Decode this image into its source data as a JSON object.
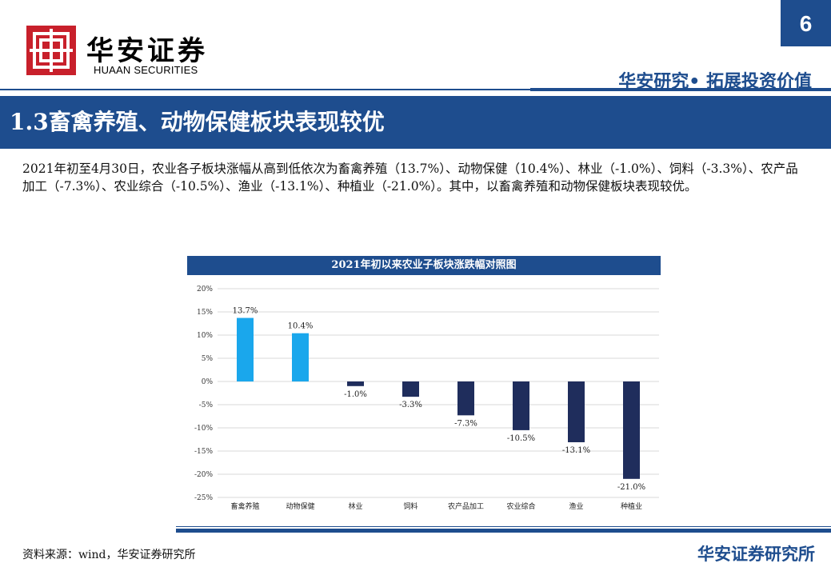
{
  "header": {
    "logo_cn": "华安证券",
    "logo_en": "HUAAN SECURITIES",
    "page_number": "6",
    "slogan": "华安研究• 拓展投资价值"
  },
  "title": "1.3畜禽养殖、动物保健板块表现较优",
  "body": {
    "paragraph": "2021年初至4月30日，农业各子板块涨幅从高到低依次为畜禽养殖（13.7%）、动物保健（10.4%）、林业（-1.0%）、饲料（-3.3%）、农产品加工（-7.3%）、农业综合（-10.5%）、渔业（-13.1%）、种植业（-21.0%）。其中，以畜禽养殖和动物保健板块表现较优。"
  },
  "chart_data": {
    "type": "bar",
    "title": "2021年初以来农业子板块涨跌幅对照图",
    "categories": [
      "畜禽养殖",
      "动物保健",
      "林业",
      "饲料",
      "农产品加工",
      "农业综合",
      "渔业",
      "种植业"
    ],
    "values": [
      13.7,
      10.4,
      -1.0,
      -3.3,
      -7.3,
      -10.5,
      -13.1,
      -21.0
    ],
    "value_labels": [
      "13.7%",
      "10.4%",
      "-1.0%",
      "-3.3%",
      "-7.3%",
      "-10.5%",
      "-13.1%",
      "-21.0%"
    ],
    "ylim": [
      -25,
      20
    ],
    "yticks": [
      20,
      15,
      10,
      5,
      0,
      -5,
      -10,
      -15,
      -20,
      -25
    ],
    "ytick_labels": [
      "20%",
      "15%",
      "10%",
      "5%",
      "0%",
      "-5%",
      "-10%",
      "-15%",
      "-20%",
      "-25%"
    ],
    "grid": true,
    "positive_color": "#1aa7ec",
    "negative_color": "#1f2d5c"
  },
  "footer": {
    "source": "资料来源：wind，华安证券研究所",
    "brand": "华安证券研究所"
  }
}
